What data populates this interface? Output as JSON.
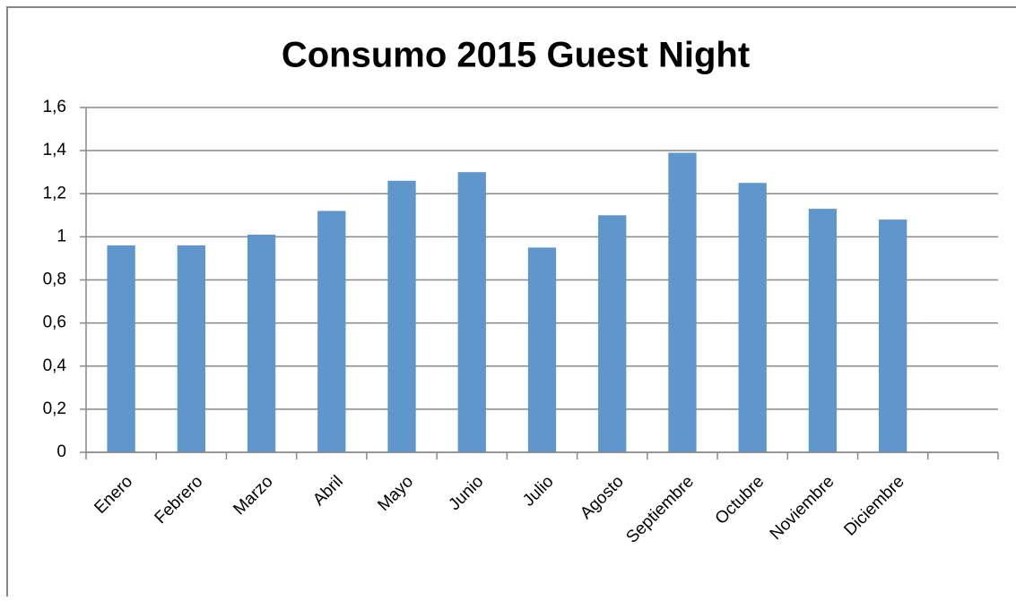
{
  "chart_data": {
    "type": "bar",
    "title": "Consumo 2015 Guest Night",
    "categories": [
      "Enero",
      "Febrero",
      "Marzo",
      "Abril",
      "Mayo",
      "Junio",
      "Julio",
      "Agosto",
      "Septiembre",
      "Octubre",
      "Noviembre",
      "Diciembre",
      null
    ],
    "values": [
      0.96,
      0.96,
      1.01,
      1.12,
      1.26,
      1.3,
      0.95,
      1.1,
      1.39,
      1.25,
      1.13,
      1.08,
      null
    ],
    "color": "#5f96cc",
    "ylim": [
      0,
      1.6
    ],
    "yticks": [
      0,
      {
        "value": 0.2,
        "label": "0,2"
      },
      {
        "value": 0.4,
        "label": "0,4"
      },
      {
        "value": 0.6,
        "label": "0,6"
      },
      {
        "value": 0.8,
        "label": "0,8"
      },
      1,
      {
        "value": 1.2,
        "label": "1,2"
      },
      {
        "value": 1.4,
        "label": "1,4"
      },
      {
        "value": 1.6,
        "label": "1,6"
      }
    ],
    "grid": true
  }
}
